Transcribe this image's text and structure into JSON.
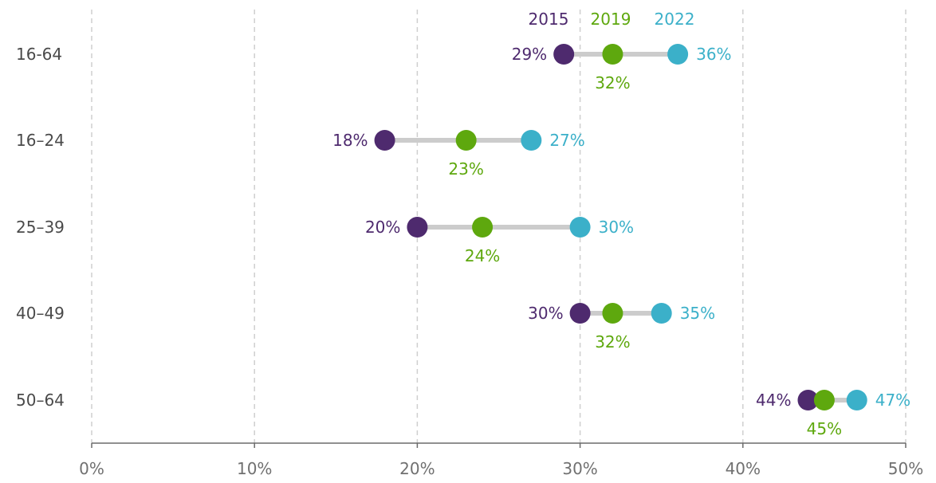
{
  "chart_data": {
    "type": "dumbbell",
    "categories": [
      "16-64",
      "16–24",
      "25–39",
      "40–49",
      "50–64"
    ],
    "series": [
      {
        "name": "2015",
        "color": "#4e2a6e",
        "values": [
          29,
          18,
          20,
          30,
          44
        ],
        "labels": [
          "29%",
          "18%",
          "20%",
          "30%",
          "44%"
        ]
      },
      {
        "name": "2019",
        "color": "#5ea80e",
        "values": [
          32,
          23,
          24,
          32,
          45
        ],
        "labels": [
          "32%",
          "23%",
          "24%",
          "32%",
          "45%"
        ]
      },
      {
        "name": "2022",
        "color": "#3bb0c9",
        "values": [
          36,
          27,
          30,
          35,
          47
        ],
        "labels": [
          "36%",
          "27%",
          "30%",
          "35%",
          "47%"
        ]
      }
    ],
    "xlim": [
      0,
      50
    ],
    "xticks": [
      0,
      10,
      20,
      30,
      40,
      50
    ],
    "xtick_labels": [
      "0%",
      "10%",
      "20%",
      "30%",
      "40%",
      "50%"
    ],
    "grid": true,
    "legend_placement": "top-center"
  }
}
